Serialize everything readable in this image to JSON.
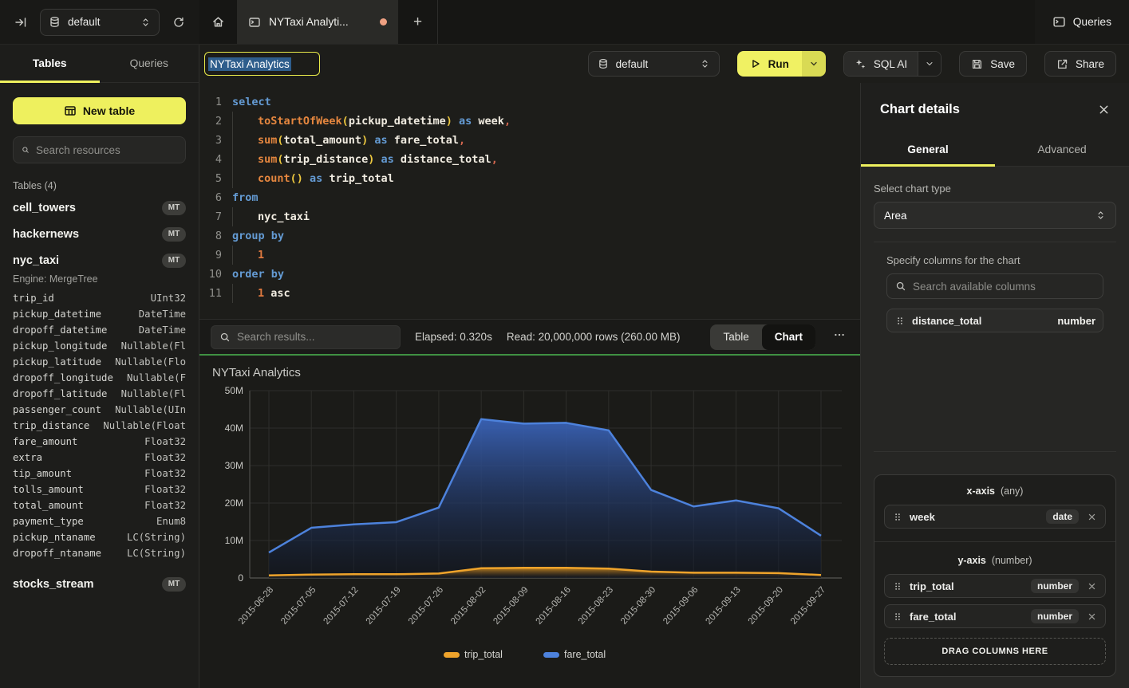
{
  "colors": {
    "accent": "#eef05e",
    "green_divider": "#3f9142",
    "selection": "#2e5d8c",
    "unsaved_dot": "#efa182",
    "yellow_run": "#f0f163"
  },
  "topbar": {
    "database": "default",
    "tab_title": "NYTaxi Analyti...",
    "queries_label": "Queries"
  },
  "sidebar": {
    "tabs": [
      "Tables",
      "Queries"
    ],
    "active_tab": "Tables",
    "new_table_label": "New table",
    "search_placeholder": "Search resources",
    "section_label": "Tables (4)",
    "tables": [
      {
        "name": "cell_towers",
        "badge": "MT"
      },
      {
        "name": "hackernews",
        "badge": "MT"
      },
      {
        "name": "nyc_taxi",
        "badge": "MT",
        "engine": "Engine: MergeTree",
        "columns": [
          [
            "trip_id",
            "UInt32"
          ],
          [
            "pickup_datetime",
            "DateTime"
          ],
          [
            "dropoff_datetime",
            "DateTime"
          ],
          [
            "pickup_longitude",
            "Nullable(Fl"
          ],
          [
            "pickup_latitude",
            "Nullable(Flo"
          ],
          [
            "dropoff_longitude",
            "Nullable(F"
          ],
          [
            "dropoff_latitude",
            "Nullable(Fl"
          ],
          [
            "passenger_count",
            "Nullable(UIn"
          ],
          [
            "trip_distance",
            "Nullable(Float"
          ],
          [
            "fare_amount",
            "Float32"
          ],
          [
            "extra",
            "Float32"
          ],
          [
            "tip_amount",
            "Float32"
          ],
          [
            "tolls_amount",
            "Float32"
          ],
          [
            "total_amount",
            "Float32"
          ],
          [
            "payment_type",
            "Enum8"
          ],
          [
            "pickup_ntaname",
            "LC(String)"
          ],
          [
            "dropoff_ntaname",
            "LC(String)"
          ]
        ]
      },
      {
        "name": "stocks_stream",
        "badge": "MT"
      }
    ]
  },
  "query_header": {
    "title_value": "NYTaxi Analytics",
    "database": "default",
    "run_label": "Run",
    "sql_ai_label": "SQL AI",
    "save_label": "Save",
    "share_label": "Share"
  },
  "editor": {
    "lines": [
      {
        "n": "1",
        "ind": false,
        "t": [
          [
            "k",
            "select"
          ]
        ]
      },
      {
        "n": "2",
        "ind": true,
        "t": [
          [
            "f",
            "toStartOfWeek"
          ],
          [
            "p",
            "("
          ],
          [
            "i",
            "pickup_datetime"
          ],
          [
            "p",
            ")"
          ],
          [
            "s",
            " "
          ],
          [
            "k",
            "as"
          ],
          [
            "s",
            " "
          ],
          [
            "i",
            "week"
          ],
          [
            "c",
            ","
          ]
        ]
      },
      {
        "n": "3",
        "ind": true,
        "t": [
          [
            "f",
            "sum"
          ],
          [
            "p",
            "("
          ],
          [
            "i",
            "total_amount"
          ],
          [
            "p",
            ")"
          ],
          [
            "s",
            " "
          ],
          [
            "k",
            "as"
          ],
          [
            "s",
            " "
          ],
          [
            "i",
            "fare_total"
          ],
          [
            "c",
            ","
          ]
        ]
      },
      {
        "n": "4",
        "ind": true,
        "t": [
          [
            "f",
            "sum"
          ],
          [
            "p",
            "("
          ],
          [
            "i",
            "trip_distance"
          ],
          [
            "p",
            ")"
          ],
          [
            "s",
            " "
          ],
          [
            "k",
            "as"
          ],
          [
            "s",
            " "
          ],
          [
            "i",
            "distance_total"
          ],
          [
            "c",
            ","
          ]
        ]
      },
      {
        "n": "5",
        "ind": true,
        "t": [
          [
            "f",
            "count"
          ],
          [
            "p",
            "()"
          ],
          [
            "s",
            " "
          ],
          [
            "k",
            "as"
          ],
          [
            "s",
            " "
          ],
          [
            "i",
            "trip_total"
          ]
        ]
      },
      {
        "n": "6",
        "ind": false,
        "t": [
          [
            "k",
            "from"
          ]
        ]
      },
      {
        "n": "7",
        "ind": true,
        "t": [
          [
            "i",
            "nyc_taxi"
          ]
        ]
      },
      {
        "n": "8",
        "ind": false,
        "t": [
          [
            "k",
            "group"
          ],
          [
            "s",
            " "
          ],
          [
            "k",
            "by"
          ]
        ]
      },
      {
        "n": "9",
        "ind": true,
        "t": [
          [
            "n1",
            "1"
          ]
        ]
      },
      {
        "n": "10",
        "ind": false,
        "t": [
          [
            "k",
            "order"
          ],
          [
            "s",
            " "
          ],
          [
            "k",
            "by"
          ]
        ]
      },
      {
        "n": "11",
        "ind": true,
        "t": [
          [
            "n1",
            "1"
          ],
          [
            "s",
            " "
          ],
          [
            "i",
            "asc"
          ]
        ]
      }
    ]
  },
  "results_bar": {
    "search_placeholder": "Search results...",
    "elapsed": "Elapsed: 0.320s",
    "read": "Read: 20,000,000 rows (260.00 MB)",
    "view_toggle": [
      "Table",
      "Chart"
    ],
    "active_view": "Chart",
    "more": "•••"
  },
  "chart_data": {
    "type": "area",
    "title": "NYTaxi Analytics",
    "categories": [
      "2015-06-28",
      "2015-07-05",
      "2015-07-12",
      "2015-07-19",
      "2015-07-26",
      "2015-08-02",
      "2015-08-09",
      "2015-08-16",
      "2015-08-23",
      "2015-08-30",
      "2015-09-06",
      "2015-09-13",
      "2015-09-20",
      "2015-09-27"
    ],
    "series": [
      {
        "name": "trip_total",
        "color": "#eea32b",
        "fill": "#c9861d",
        "values": [
          0.7,
          0.9,
          1.0,
          1.0,
          1.2,
          2.6,
          2.7,
          2.7,
          2.5,
          1.7,
          1.4,
          1.4,
          1.3,
          0.8
        ]
      },
      {
        "name": "fare_total",
        "color": "#4d82dc",
        "fill": "#3a63b8",
        "values": [
          6.8,
          13.4,
          14.3,
          14.9,
          18.8,
          42.4,
          41.2,
          41.4,
          39.4,
          23.5,
          19.1,
          20.7,
          18.6,
          11.3
        ]
      }
    ],
    "unit": "millions",
    "xlabel": "",
    "ylabel": "",
    "ylim": [
      0,
      50
    ],
    "yticks": [
      "0",
      "10M",
      "20M",
      "30M",
      "40M",
      "50M"
    ],
    "grid": true,
    "legend_position": "bottom"
  },
  "chart_details": {
    "title": "Chart details",
    "tabs": [
      "General",
      "Advanced"
    ],
    "active_tab": "General",
    "chart_type_label": "Select chart type",
    "chart_type_value": "Area",
    "columns_label": "Specify columns for the chart",
    "search_placeholder": "Search available columns",
    "available_columns": [
      {
        "name": "distance_total",
        "type": "number"
      }
    ],
    "x_axis": {
      "label": "x-axis",
      "hint": "(any)",
      "items": [
        {
          "name": "week",
          "type": "date"
        }
      ]
    },
    "y_axis": {
      "label": "y-axis",
      "hint": "(number)",
      "items": [
        {
          "name": "trip_total",
          "type": "number"
        },
        {
          "name": "fare_total",
          "type": "number"
        }
      ]
    },
    "dropzone_label": "DRAG COLUMNS HERE"
  }
}
